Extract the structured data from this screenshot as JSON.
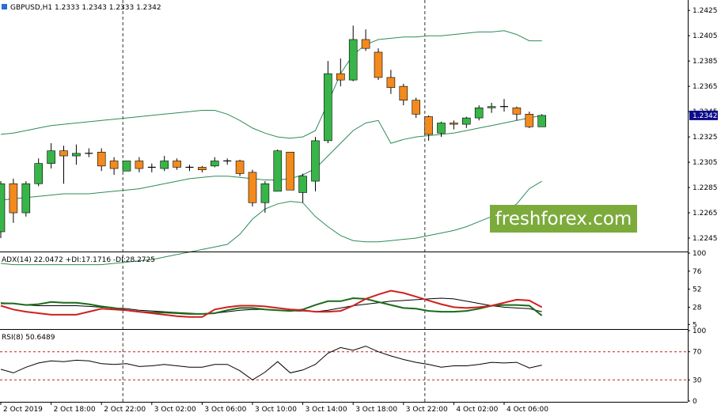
{
  "window": {
    "instrument_title": "GBPUSD,H1  1.2333 1.2343 1.2333 1.2342",
    "watermark": "freshforex.com",
    "watermark_color": "#7cab3c"
  },
  "colors": {
    "bull": "#37b548",
    "bear": "#f28a1e",
    "band": "#2e8b57",
    "adx": "#000000",
    "plus_di": "#1a6b1a",
    "minus_di": "#d01f1f",
    "rsi": "#000000",
    "grid_dashed": "#333333",
    "level_line": "#c02020",
    "price_tag_bg": "#0b0b8c"
  },
  "chart_data": [
    {
      "type": "candlestick",
      "title": "GBPUSD,H1",
      "ohlc_header": "1.2333 1.2343 1.2333 1.2342",
      "last_price": "1.2342",
      "ylim": [
        1.2235,
        1.2432
      ],
      "y_ticks": [
        "1.2425",
        "1.2405",
        "1.2385",
        "1.2365",
        "1.2345",
        "1.2325",
        "1.2305",
        "1.2285",
        "1.2265",
        "1.2245"
      ],
      "x_ticks": [
        {
          "index": 0,
          "label": "2 Oct 2019"
        },
        {
          "index": 4,
          "label": "2 Oct 18:00"
        },
        {
          "index": 8,
          "label": "2 Oct 22:00"
        },
        {
          "index": 12,
          "label": "3 Oct 02:00"
        },
        {
          "index": 16,
          "label": "3 Oct 06:00"
        },
        {
          "index": 20,
          "label": "3 Oct 10:00"
        },
        {
          "index": 24,
          "label": "3 Oct 14:00"
        },
        {
          "index": 28,
          "label": "3 Oct 18:00"
        },
        {
          "index": 32,
          "label": "3 Oct 22:00"
        },
        {
          "index": 36,
          "label": "4 Oct 02:00"
        },
        {
          "index": 40,
          "label": "4 Oct 06:00"
        }
      ],
      "day_separators": [
        9.7,
        33.7
      ],
      "candles": [
        {
          "o": 1.225,
          "h": 1.229,
          "l": 1.2245,
          "c": 1.2288
        },
        {
          "o": 1.2288,
          "h": 1.2292,
          "l": 1.2257,
          "c": 1.2265
        },
        {
          "o": 1.2265,
          "h": 1.229,
          "l": 1.2262,
          "c": 1.2288
        },
        {
          "o": 1.2288,
          "h": 1.2308,
          "l": 1.2286,
          "c": 1.2304
        },
        {
          "o": 1.2304,
          "h": 1.232,
          "l": 1.23,
          "c": 1.2314
        },
        {
          "o": 1.2314,
          "h": 1.2318,
          "l": 1.2288,
          "c": 1.231
        },
        {
          "o": 1.231,
          "h": 1.2319,
          "l": 1.2303,
          "c": 1.2312
        },
        {
          "o": 1.2312,
          "h": 1.2316,
          "l": 1.2309,
          "c": 1.2312
        },
        {
          "o": 1.2313,
          "h": 1.2316,
          "l": 1.2298,
          "c": 1.2302
        },
        {
          "o": 1.2306,
          "h": 1.2309,
          "l": 1.2295,
          "c": 1.23
        },
        {
          "o": 1.2298,
          "h": 1.2306,
          "l": 1.2298,
          "c": 1.2306
        },
        {
          "o": 1.2306,
          "h": 1.2309,
          "l": 1.2297,
          "c": 1.23
        },
        {
          "o": 1.2301,
          "h": 1.2304,
          "l": 1.2297,
          "c": 1.2301
        },
        {
          "o": 1.23,
          "h": 1.231,
          "l": 1.2298,
          "c": 1.2306
        },
        {
          "o": 1.2306,
          "h": 1.2308,
          "l": 1.2299,
          "c": 1.2301
        },
        {
          "o": 1.2301,
          "h": 1.2303,
          "l": 1.2298,
          "c": 1.2301
        },
        {
          "o": 1.2301,
          "h": 1.2302,
          "l": 1.2297,
          "c": 1.2299
        },
        {
          "o": 1.2302,
          "h": 1.2309,
          "l": 1.2301,
          "c": 1.2306
        },
        {
          "o": 1.2306,
          "h": 1.2308,
          "l": 1.2303,
          "c": 1.2306
        },
        {
          "o": 1.2306,
          "h": 1.2307,
          "l": 1.2294,
          "c": 1.2296
        },
        {
          "o": 1.2297,
          "h": 1.2299,
          "l": 1.227,
          "c": 1.2273
        },
        {
          "o": 1.2273,
          "h": 1.229,
          "l": 1.2265,
          "c": 1.2288
        },
        {
          "o": 1.2282,
          "h": 1.2315,
          "l": 1.2282,
          "c": 1.2314
        },
        {
          "o": 1.2313,
          "h": 1.2313,
          "l": 1.2283,
          "c": 1.2283
        },
        {
          "o": 1.2281,
          "h": 1.2296,
          "l": 1.2273,
          "c": 1.2294
        },
        {
          "o": 1.229,
          "h": 1.2325,
          "l": 1.2282,
          "c": 1.2322
        },
        {
          "o": 1.2322,
          "h": 1.2385,
          "l": 1.232,
          "c": 1.2375
        },
        {
          "o": 1.2375,
          "h": 1.2387,
          "l": 1.2365,
          "c": 1.237
        },
        {
          "o": 1.237,
          "h": 1.2413,
          "l": 1.2369,
          "c": 1.2402
        },
        {
          "o": 1.2402,
          "h": 1.241,
          "l": 1.2393,
          "c": 1.2395
        },
        {
          "o": 1.2392,
          "h": 1.2395,
          "l": 1.237,
          "c": 1.2372
        },
        {
          "o": 1.2372,
          "h": 1.2378,
          "l": 1.2359,
          "c": 1.2364
        },
        {
          "o": 1.2365,
          "h": 1.2367,
          "l": 1.235,
          "c": 1.2354
        },
        {
          "o": 1.2354,
          "h": 1.2356,
          "l": 1.234,
          "c": 1.2343
        },
        {
          "o": 1.2341,
          "h": 1.2342,
          "l": 1.2322,
          "c": 1.2327
        },
        {
          "o": 1.2328,
          "h": 1.2337,
          "l": 1.2325,
          "c": 1.2336
        },
        {
          "o": 1.2336,
          "h": 1.2338,
          "l": 1.2331,
          "c": 1.2335
        },
        {
          "o": 1.2335,
          "h": 1.2341,
          "l": 1.2332,
          "c": 1.234
        },
        {
          "o": 1.234,
          "h": 1.235,
          "l": 1.2338,
          "c": 1.2348
        },
        {
          "o": 1.2348,
          "h": 1.2352,
          "l": 1.2344,
          "c": 1.2349
        },
        {
          "o": 1.2349,
          "h": 1.2355,
          "l": 1.2345,
          "c": 1.2349
        },
        {
          "o": 1.2348,
          "h": 1.2349,
          "l": 1.2338,
          "c": 1.2343
        },
        {
          "o": 1.2343,
          "h": 1.2345,
          "l": 1.2332,
          "c": 1.2333
        },
        {
          "o": 1.2333,
          "h": 1.2343,
          "l": 1.2333,
          "c": 1.2342
        }
      ],
      "bollinger": {
        "upper": [
          1.2327,
          1.2328,
          1.233,
          1.2332,
          1.2334,
          1.2335,
          1.2336,
          1.2337,
          1.2338,
          1.2339,
          1.234,
          1.2341,
          1.2342,
          1.2343,
          1.2344,
          1.2345,
          1.2346,
          1.2346,
          1.2343,
          1.2338,
          1.2332,
          1.2328,
          1.2325,
          1.2324,
          1.2325,
          1.233,
          1.2352,
          1.2375,
          1.239,
          1.2398,
          1.2402,
          1.2403,
          1.2404,
          1.2404,
          1.2405,
          1.2405,
          1.2406,
          1.2407,
          1.2408,
          1.2408,
          1.2409,
          1.2406,
          1.2401,
          1.2401
        ],
        "middle": [
          1.2275,
          1.2276,
          1.2277,
          1.2278,
          1.2279,
          1.228,
          1.228,
          1.228,
          1.2281,
          1.2282,
          1.2283,
          1.2284,
          1.2286,
          1.2288,
          1.229,
          1.2292,
          1.2293,
          1.2294,
          1.2294,
          1.2293,
          1.2292,
          1.2291,
          1.2291,
          1.2292,
          1.2295,
          1.23,
          1.231,
          1.232,
          1.233,
          1.2336,
          1.2338,
          1.232,
          1.2323,
          1.2325,
          1.2326,
          1.2327,
          1.2328,
          1.233,
          1.2332,
          1.2334,
          1.2336,
          1.2338,
          1.234,
          1.2342
        ],
        "lower": null
      },
      "bollinger_lower": [
        1.2225,
        1.2224,
        1.2224,
        1.2224,
        1.2224,
        1.2224,
        1.2224,
        1.2224,
        1.2224,
        1.2225,
        1.2226,
        1.2227,
        1.2228,
        1.223,
        1.2232,
        1.2234,
        1.2236,
        1.2238,
        1.224,
        1.2248,
        1.226,
        1.2268,
        1.2272,
        1.2274,
        1.2273,
        1.2262,
        1.2254,
        1.2247,
        1.2243,
        1.2242,
        1.2242,
        1.2243,
        1.2244,
        1.2245,
        1.2247,
        1.2249,
        1.2251,
        1.2254,
        1.2258,
        1.2262,
        1.2266,
        1.2272,
        1.2284,
        1.229
      ]
    },
    {
      "type": "line",
      "title": "ADX(14) 22.0472 +DI:17.1716 -DI:28.2725",
      "ylim": [
        0,
        100
      ],
      "y_ticks": [
        100,
        76,
        52,
        28,
        5
      ],
      "series": [
        {
          "name": "ADX(14)",
          "values": [
            34,
            33,
            31,
            30,
            30,
            30,
            30,
            29,
            28,
            27,
            26,
            24,
            23,
            22,
            21,
            20,
            19,
            20,
            22,
            24,
            25,
            25,
            24,
            23,
            23,
            22,
            24,
            27,
            30,
            32,
            34,
            36,
            37,
            38,
            39,
            40,
            39,
            36,
            33,
            30,
            28,
            27,
            26,
            22
          ]
        },
        {
          "name": "+DI",
          "values": [
            33,
            33,
            31,
            32,
            35,
            34,
            34,
            32,
            29,
            27,
            24,
            22,
            21,
            21,
            20,
            19,
            19,
            20,
            24,
            27,
            27,
            25,
            24,
            23,
            25,
            31,
            36,
            36,
            40,
            39,
            35,
            31,
            27,
            26,
            23,
            22,
            22,
            23,
            26,
            30,
            31,
            31,
            30,
            17
          ]
        },
        {
          "name": "-DI",
          "values": [
            30,
            25,
            22,
            20,
            18,
            18,
            18,
            22,
            26,
            25,
            24,
            22,
            20,
            18,
            16,
            15,
            15,
            25,
            28,
            30,
            30,
            29,
            27,
            25,
            24,
            22,
            22,
            23,
            30,
            39,
            45,
            50,
            47,
            42,
            37,
            32,
            28,
            27,
            28,
            30,
            34,
            38,
            37,
            28
          ]
        }
      ]
    },
    {
      "type": "line",
      "title": "RSI(8) 50.6489",
      "ylim": [
        0,
        100
      ],
      "y_ticks": [
        100,
        70,
        30,
        0
      ],
      "levels": [
        70,
        30
      ],
      "series": [
        {
          "name": "RSI(8)",
          "values": [
            45,
            40,
            48,
            54,
            57,
            56,
            58,
            57,
            53,
            52,
            53,
            49,
            50,
            52,
            50,
            48,
            48,
            52,
            52,
            43,
            30,
            41,
            56,
            40,
            44,
            52,
            68,
            76,
            72,
            78,
            70,
            64,
            59,
            55,
            52,
            48,
            50,
            50,
            52,
            55,
            54,
            55,
            47,
            51
          ]
        }
      ]
    }
  ]
}
